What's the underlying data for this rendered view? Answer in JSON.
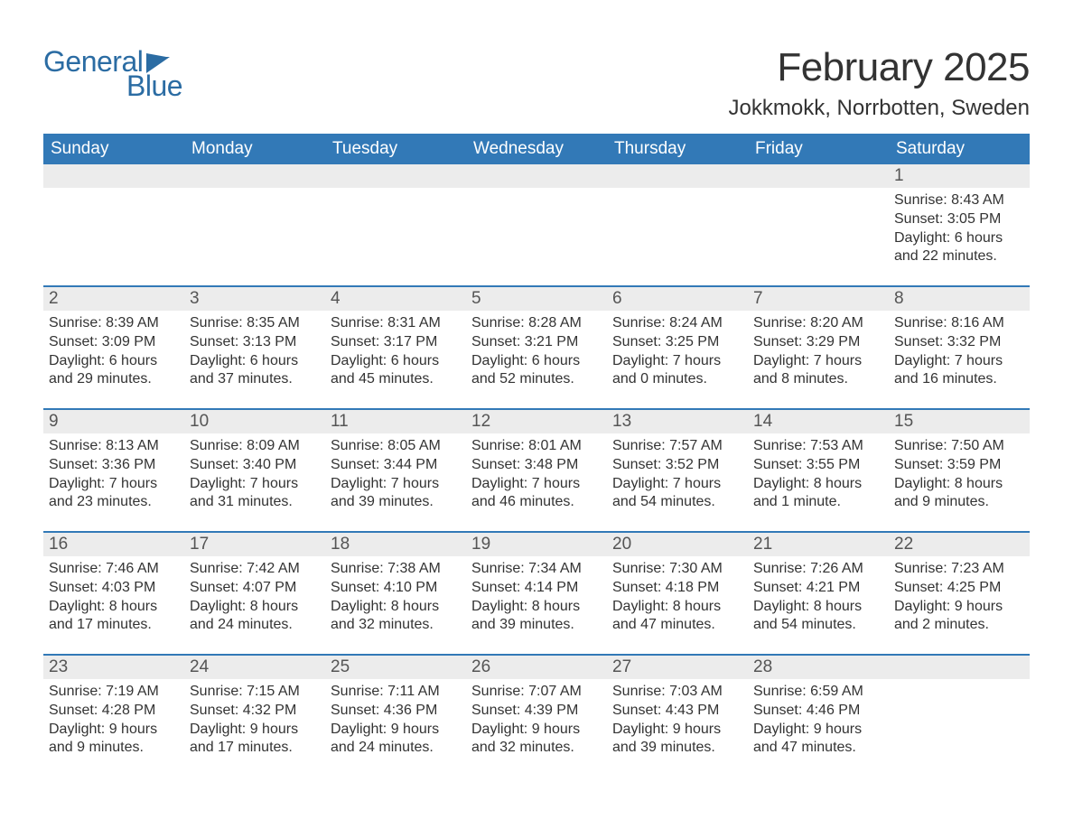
{
  "logo": {
    "text1": "General",
    "text2": "Blue",
    "flag_color": "#2b6ca3"
  },
  "header": {
    "month_title": "February 2025",
    "location": "Jokkmokk, Norrbotten, Sweden"
  },
  "colors": {
    "header_bg": "#3279b7",
    "header_text": "#ffffff",
    "band_bg": "#ececec",
    "rule": "#3279b7",
    "text": "#333333",
    "page_bg": "#ffffff"
  },
  "layout": {
    "columns": 7,
    "fontsize_title": 44,
    "fontsize_location": 24,
    "fontsize_weekday": 19,
    "fontsize_daynum": 19,
    "fontsize_body": 16
  },
  "weekdays": [
    "Sunday",
    "Monday",
    "Tuesday",
    "Wednesday",
    "Thursday",
    "Friday",
    "Saturday"
  ],
  "weeks": [
    [
      null,
      null,
      null,
      null,
      null,
      null,
      {
        "n": "1",
        "sunrise": "8:43 AM",
        "sunset": "3:05 PM",
        "dl1": "6 hours",
        "dl2": "and 22 minutes."
      }
    ],
    [
      {
        "n": "2",
        "sunrise": "8:39 AM",
        "sunset": "3:09 PM",
        "dl1": "6 hours",
        "dl2": "and 29 minutes."
      },
      {
        "n": "3",
        "sunrise": "8:35 AM",
        "sunset": "3:13 PM",
        "dl1": "6 hours",
        "dl2": "and 37 minutes."
      },
      {
        "n": "4",
        "sunrise": "8:31 AM",
        "sunset": "3:17 PM",
        "dl1": "6 hours",
        "dl2": "and 45 minutes."
      },
      {
        "n": "5",
        "sunrise": "8:28 AM",
        "sunset": "3:21 PM",
        "dl1": "6 hours",
        "dl2": "and 52 minutes."
      },
      {
        "n": "6",
        "sunrise": "8:24 AM",
        "sunset": "3:25 PM",
        "dl1": "7 hours",
        "dl2": "and 0 minutes."
      },
      {
        "n": "7",
        "sunrise": "8:20 AM",
        "sunset": "3:29 PM",
        "dl1": "7 hours",
        "dl2": "and 8 minutes."
      },
      {
        "n": "8",
        "sunrise": "8:16 AM",
        "sunset": "3:32 PM",
        "dl1": "7 hours",
        "dl2": "and 16 minutes."
      }
    ],
    [
      {
        "n": "9",
        "sunrise": "8:13 AM",
        "sunset": "3:36 PM",
        "dl1": "7 hours",
        "dl2": "and 23 minutes."
      },
      {
        "n": "10",
        "sunrise": "8:09 AM",
        "sunset": "3:40 PM",
        "dl1": "7 hours",
        "dl2": "and 31 minutes."
      },
      {
        "n": "11",
        "sunrise": "8:05 AM",
        "sunset": "3:44 PM",
        "dl1": "7 hours",
        "dl2": "and 39 minutes."
      },
      {
        "n": "12",
        "sunrise": "8:01 AM",
        "sunset": "3:48 PM",
        "dl1": "7 hours",
        "dl2": "and 46 minutes."
      },
      {
        "n": "13",
        "sunrise": "7:57 AM",
        "sunset": "3:52 PM",
        "dl1": "7 hours",
        "dl2": "and 54 minutes."
      },
      {
        "n": "14",
        "sunrise": "7:53 AM",
        "sunset": "3:55 PM",
        "dl1": "8 hours",
        "dl2": "and 1 minute."
      },
      {
        "n": "15",
        "sunrise": "7:50 AM",
        "sunset": "3:59 PM",
        "dl1": "8 hours",
        "dl2": "and 9 minutes."
      }
    ],
    [
      {
        "n": "16",
        "sunrise": "7:46 AM",
        "sunset": "4:03 PM",
        "dl1": "8 hours",
        "dl2": "and 17 minutes."
      },
      {
        "n": "17",
        "sunrise": "7:42 AM",
        "sunset": "4:07 PM",
        "dl1": "8 hours",
        "dl2": "and 24 minutes."
      },
      {
        "n": "18",
        "sunrise": "7:38 AM",
        "sunset": "4:10 PM",
        "dl1": "8 hours",
        "dl2": "and 32 minutes."
      },
      {
        "n": "19",
        "sunrise": "7:34 AM",
        "sunset": "4:14 PM",
        "dl1": "8 hours",
        "dl2": "and 39 minutes."
      },
      {
        "n": "20",
        "sunrise": "7:30 AM",
        "sunset": "4:18 PM",
        "dl1": "8 hours",
        "dl2": "and 47 minutes."
      },
      {
        "n": "21",
        "sunrise": "7:26 AM",
        "sunset": "4:21 PM",
        "dl1": "8 hours",
        "dl2": "and 54 minutes."
      },
      {
        "n": "22",
        "sunrise": "7:23 AM",
        "sunset": "4:25 PM",
        "dl1": "9 hours",
        "dl2": "and 2 minutes."
      }
    ],
    [
      {
        "n": "23",
        "sunrise": "7:19 AM",
        "sunset": "4:28 PM",
        "dl1": "9 hours",
        "dl2": "and 9 minutes."
      },
      {
        "n": "24",
        "sunrise": "7:15 AM",
        "sunset": "4:32 PM",
        "dl1": "9 hours",
        "dl2": "and 17 minutes."
      },
      {
        "n": "25",
        "sunrise": "7:11 AM",
        "sunset": "4:36 PM",
        "dl1": "9 hours",
        "dl2": "and 24 minutes."
      },
      {
        "n": "26",
        "sunrise": "7:07 AM",
        "sunset": "4:39 PM",
        "dl1": "9 hours",
        "dl2": "and 32 minutes."
      },
      {
        "n": "27",
        "sunrise": "7:03 AM",
        "sunset": "4:43 PM",
        "dl1": "9 hours",
        "dl2": "and 39 minutes."
      },
      {
        "n": "28",
        "sunrise": "6:59 AM",
        "sunset": "4:46 PM",
        "dl1": "9 hours",
        "dl2": "and 47 minutes."
      },
      null
    ]
  ],
  "labels": {
    "sunrise_prefix": "Sunrise: ",
    "sunset_prefix": "Sunset: ",
    "daylight_prefix": "Daylight: "
  }
}
